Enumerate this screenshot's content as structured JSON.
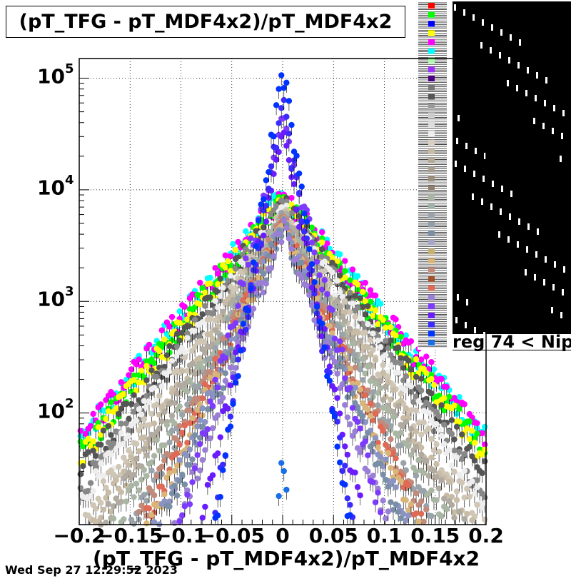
{
  "chart_data": {
    "type": "scatter",
    "title": "(pT_TFG - pT_MDF4x2)/pT_MDF4x2",
    "xlabel": "(pT_TFG - pT_MDF4x2)/pT_MDF4x2",
    "ylabel": "",
    "xlim": [
      -0.2,
      0.2
    ],
    "ylim": [
      10,
      150000
    ],
    "yscale": "log",
    "grid": true,
    "legend_position": "top-right",
    "x_ticks": [
      "−0.2",
      "−0.15",
      "−0.1",
      "−0.05",
      "0",
      "0.05",
      "0.1",
      "0.15",
      "0.2"
    ],
    "y_ticks": [
      {
        "base": "10",
        "exp": "2",
        "value": 100
      },
      {
        "base": "10",
        "exp": "3",
        "value": 1000
      },
      {
        "base": "10",
        "exp": "4",
        "value": 10000
      },
      {
        "base": "10",
        "exp": "5",
        "value": 100000
      }
    ],
    "legend_partial_text": "reg 74 < Nip",
    "series": [
      {
        "color": "#00ffff",
        "peak": 9000,
        "width": 0.04,
        "minValue": 10
      },
      {
        "color": "#ff00ff",
        "peak": 9000,
        "width": 0.04,
        "minValue": 10
      },
      {
        "color": "#00ff00",
        "peak": 8500,
        "width": 0.038,
        "minValue": 10
      },
      {
        "color": "#ffff00",
        "peak": 8000,
        "width": 0.038,
        "minValue": 10
      },
      {
        "color": "#555555",
        "peak": 7500,
        "width": 0.036,
        "minValue": 10
      },
      {
        "color": "#888888",
        "peak": 7000,
        "width": 0.034,
        "minValue": 10
      },
      {
        "color": "#eeeeee",
        "peak": 6500,
        "width": 0.033,
        "minValue": 10
      },
      {
        "color": "#cfc6b5",
        "peak": 6000,
        "width": 0.031,
        "minValue": 10
      },
      {
        "color": "#c8bca6",
        "peak": 5800,
        "width": 0.029,
        "minValue": 10
      },
      {
        "color": "#b0aaa0",
        "peak": 5600,
        "width": 0.028,
        "minValue": 10
      },
      {
        "color": "#aab6a4",
        "peak": 5500,
        "width": 0.026,
        "minValue": 10
      },
      {
        "color": "#9aa3a9",
        "peak": 5300,
        "width": 0.024,
        "minValue": 10
      },
      {
        "color": "#c28a7a",
        "peak": 5200,
        "width": 0.023,
        "minValue": 10
      },
      {
        "color": "#e06a55",
        "peak": 5000,
        "width": 0.022,
        "minValue": 10
      },
      {
        "color": "#d9b57a",
        "peak": 5000,
        "width": 0.021,
        "minValue": 10
      },
      {
        "color": "#8a93c2",
        "peak": 4900,
        "width": 0.02,
        "minValue": 10
      },
      {
        "color": "#7a8fa6",
        "peak": 4800,
        "width": 0.019,
        "minValue": 10
      },
      {
        "color": "#9b7fd6",
        "peak": 4700,
        "width": 0.017,
        "minValue": 10
      },
      {
        "color": "#7e3bff",
        "peak": 40000,
        "width": 0.012,
        "minValue": 10
      },
      {
        "color": "#6a1cff",
        "peak": 30000,
        "width": 0.01,
        "minValue": 10
      },
      {
        "color": "#3a2bff",
        "peak": 60000,
        "width": 0.008,
        "minValue": 10
      },
      {
        "color": "#0033ff",
        "peak": 130000,
        "width": 0.007,
        "minValue": 10
      },
      {
        "color": "#1a6fe8",
        "peak": 60,
        "width": 0.003,
        "minValue": 10
      }
    ]
  },
  "legend_colors": [
    "#ff0000",
    "#00ff00",
    "#0000ff",
    "#ffff00",
    "#ff00ff",
    "#00ffff",
    "#aaffaa",
    "#9b30ff",
    "#4b0082",
    "#777777",
    "#555555",
    "#999999",
    "#cccccc",
    "#dddddd",
    "#eeeeee",
    "#d8cfc0",
    "#c8bca6",
    "#b5a997",
    "#a89f91",
    "#9c8f7e",
    "#8f7f70",
    "#aab6a4",
    "#9fb3a8",
    "#9aa3a9",
    "#8f9ea8",
    "#7a8fa6",
    "#a6a6c8",
    "#c8b070",
    "#d9b57a",
    "#c28a7a",
    "#a0522d",
    "#e06a55",
    "#9b7fd6",
    "#7e3bff",
    "#6a1cff",
    "#3a2bff",
    "#0033ff",
    "#1a6fe8"
  ]
}
